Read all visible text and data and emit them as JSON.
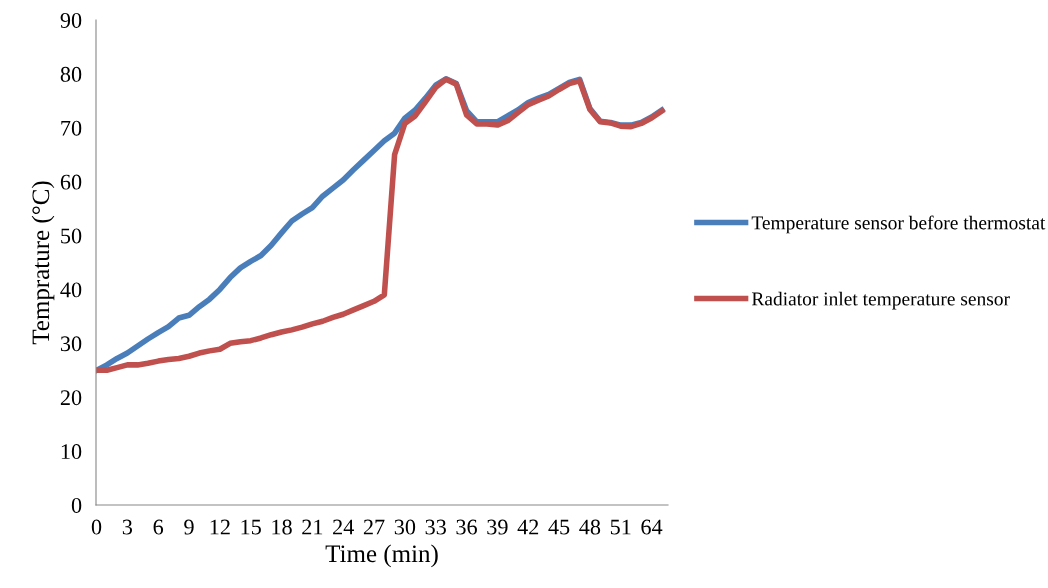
{
  "chart_data": {
    "type": "line",
    "xlabel": "Time (min)",
    "ylabel": "Temprature (°C)",
    "categories": [
      "0",
      null,
      null,
      "3",
      null,
      null,
      "6",
      null,
      null,
      "9",
      null,
      null,
      "12",
      null,
      null,
      "15",
      null,
      null,
      "18",
      null,
      null,
      "21",
      null,
      null,
      "24",
      null,
      null,
      "27",
      null,
      null,
      "30",
      null,
      null,
      "33",
      null,
      null,
      "36",
      null,
      null,
      "39",
      null,
      null,
      "42",
      null,
      null,
      "45",
      null,
      null,
      "48",
      null,
      null,
      "51",
      null,
      null,
      "64",
      null
    ],
    "series": [
      {
        "name": "Temperature sensor before thermostat",
        "color": "#4a7ebb",
        "values": [
          25,
          26,
          27.2,
          28.2,
          29.5,
          30.8,
          32,
          33.1,
          34.7,
          35.2,
          36.8,
          38.2,
          40,
          42.2,
          44,
          45.2,
          46.3,
          48.2,
          50.5,
          52.7,
          54,
          55.2,
          57.3,
          58.8,
          60.3,
          62.2,
          64,
          65.8,
          67.6,
          69,
          71.8,
          73.3,
          75.5,
          77.9,
          79.1,
          78.2,
          73.2,
          71.1,
          71.1,
          71.1,
          72.2,
          73.3,
          74.7,
          75.5,
          76.2,
          77.3,
          78.4,
          79,
          73.6,
          71.2,
          71,
          70.5,
          70.5,
          71,
          72,
          73.3
        ]
      },
      {
        "name": "Radiator inlet temperature sensor",
        "color": "#c0504d",
        "values": [
          25,
          25,
          25.5,
          26,
          26,
          26.3,
          26.7,
          27,
          27.2,
          27.6,
          28.2,
          28.6,
          28.9,
          30,
          30.3,
          30.5,
          31,
          31.6,
          32.1,
          32.5,
          33,
          33.6,
          34.1,
          34.8,
          35.4,
          36.2,
          37,
          37.8,
          39,
          65,
          70.8,
          72.2,
          74.8,
          77.5,
          79,
          78.1,
          72.4,
          70.7,
          70.7,
          70.5,
          71.3,
          72.8,
          74.3,
          75.1,
          75.9,
          77.1,
          78.2,
          78.7,
          73.4,
          71.1,
          70.9,
          70.3,
          70.2,
          70.8,
          71.8,
          73.1
        ]
      }
    ],
    "ylim": [
      0,
      90
    ],
    "yticks": [
      0,
      10,
      20,
      30,
      40,
      50,
      60,
      70,
      80,
      90
    ],
    "legend": "right",
    "marker": "none",
    "line_style": "solid"
  }
}
